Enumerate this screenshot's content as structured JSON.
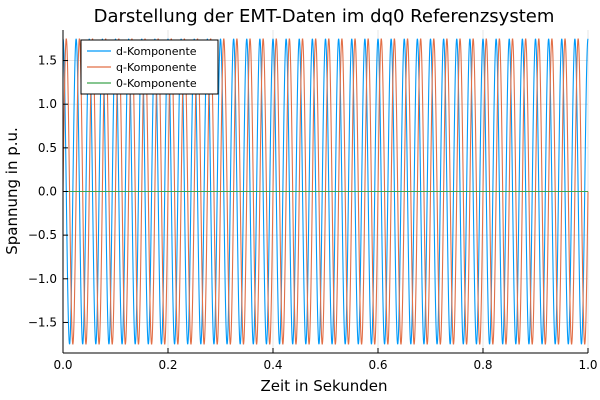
{
  "chart_data": {
    "type": "line",
    "title": "Darstellung der EMT-Daten im dq0 Referenzsystem",
    "xlabel": "Zeit in Sekunden",
    "ylabel": "Spannung in p.u.",
    "xlim": [
      0,
      1
    ],
    "ylim": [
      -1.85,
      1.85
    ],
    "xticks": [
      0.0,
      0.2,
      0.4,
      0.6,
      0.8,
      1.0
    ],
    "xtick_labels": [
      "0.0",
      "0.2",
      "0.4",
      "0.6",
      "0.8",
      "1.0"
    ],
    "yticks": [
      -1.5,
      -1.0,
      -0.5,
      0.0,
      0.5,
      1.0,
      1.5
    ],
    "ytick_labels": [
      "−1.5",
      "−1.0",
      "−0.5",
      "0.0",
      "0.5",
      "1.0",
      "1.5"
    ],
    "grid": true,
    "legend_position": "top-left",
    "series": [
      {
        "name": "d-Komponente",
        "color": "#009af9",
        "amplitude": 1.75,
        "frequency_hz": 40,
        "phase_deg": 90
      },
      {
        "name": "q-Komponente",
        "color": "#e26f46",
        "amplitude": 1.75,
        "frequency_hz": 40,
        "phase_deg": 0
      },
      {
        "name": "0-Komponente",
        "color": "#3ea44e",
        "amplitude": 0,
        "frequency_hz": 0,
        "phase_deg": 0
      }
    ]
  }
}
